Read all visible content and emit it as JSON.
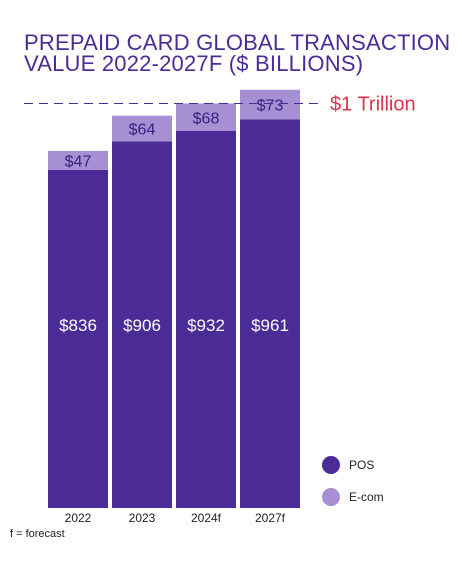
{
  "chart_data": {
    "type": "bar",
    "stacked": true,
    "title_lines": [
      "PREPAID CARD GLOBAL TRANSACTION",
      "VALUE 2022-2027F ($ BILLIONS)"
    ],
    "categories": [
      "2022",
      "2023",
      "2024f",
      "2027f"
    ],
    "series": [
      {
        "name": "POS",
        "values": [
          836,
          906,
          932,
          961
        ],
        "labels": [
          "$836",
          "$906",
          "$932",
          "$961"
        ],
        "color": "#4b2c96"
      },
      {
        "name": "E-com",
        "values": [
          47,
          64,
          68,
          73
        ],
        "labels": [
          "$47",
          "$64",
          "$68",
          "$73"
        ],
        "color": "#a68fd3"
      }
    ],
    "reference_line": {
      "value": 1000,
      "label": "$1 Trillion",
      "color": "#e0334a"
    },
    "ylim": [
      0,
      1000
    ],
    "grid": false,
    "legend": "bottom-right"
  },
  "footnote": "f = forecast"
}
